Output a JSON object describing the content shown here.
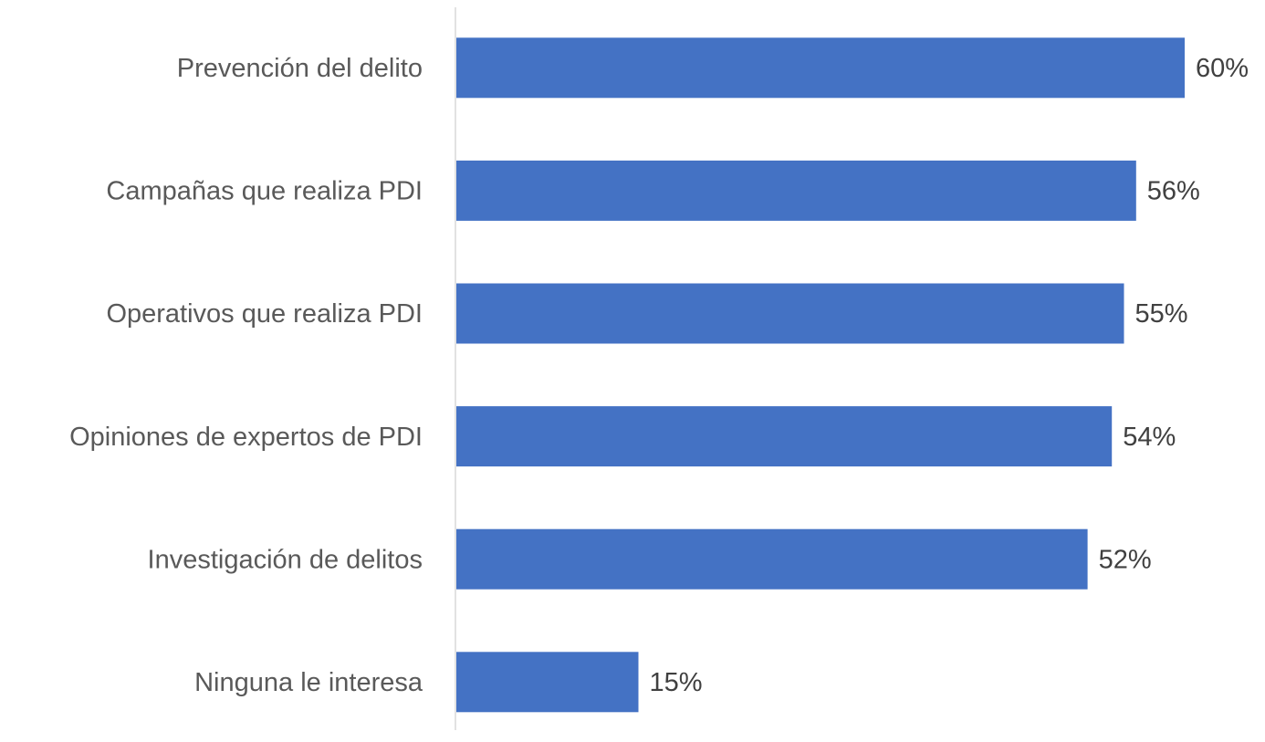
{
  "chart_data": {
    "type": "bar",
    "orientation": "horizontal",
    "categories": [
      "Prevención del delito",
      "Campañas que realiza PDI",
      "Operativos que realiza PDI",
      "Opiniones de expertos de PDI",
      "Investigación de delitos",
      "Ninguna le interesa"
    ],
    "values": [
      60,
      56,
      55,
      54,
      52,
      15
    ],
    "value_labels": [
      "60%",
      "56%",
      "55%",
      "54%",
      "52%",
      "15%"
    ],
    "color": "#4472c4"
  }
}
